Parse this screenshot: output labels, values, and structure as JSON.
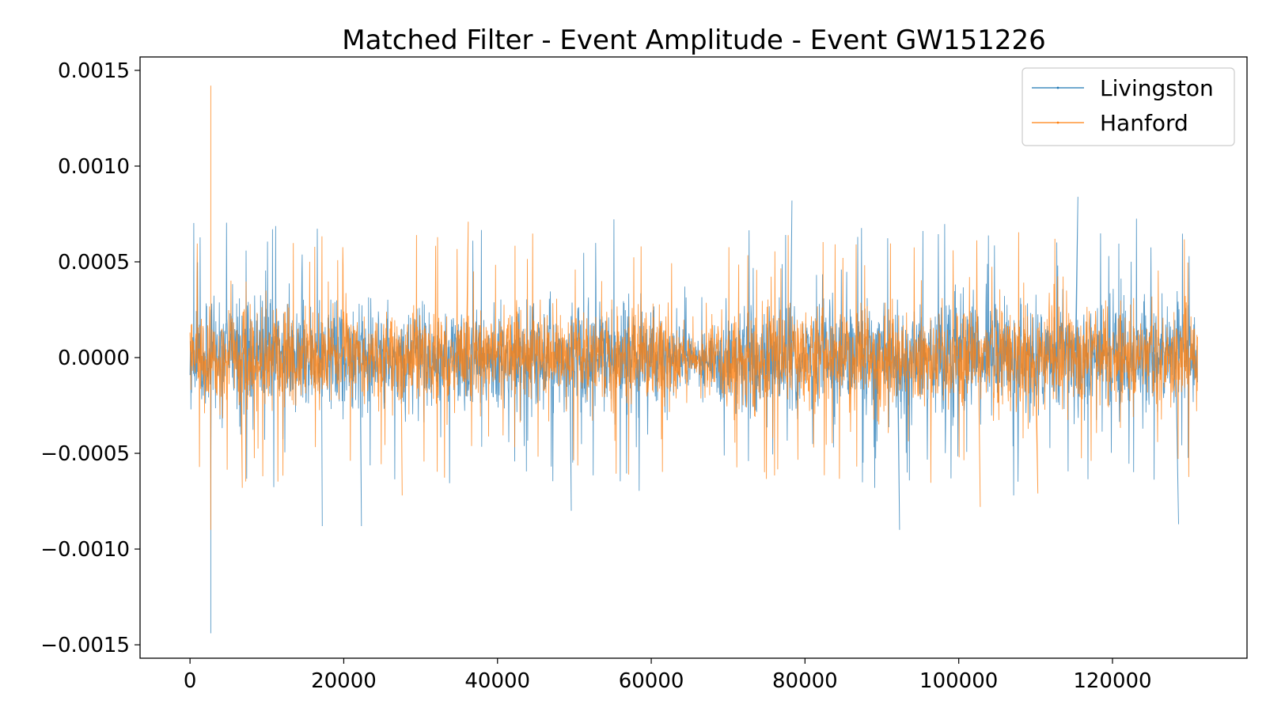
{
  "chart_data": {
    "type": "line",
    "title": "Matched Filter - Event Amplitude - Event GW151226",
    "xlabel": "",
    "ylabel": "",
    "xlim": [
      -6500,
      137500
    ],
    "ylim": [
      -0.00157,
      0.00157
    ],
    "x_ticks": [
      0,
      20000,
      40000,
      60000,
      80000,
      100000,
      120000
    ],
    "x_tick_labels": [
      "0",
      "20000",
      "40000",
      "60000",
      "80000",
      "100000",
      "120000"
    ],
    "y_ticks": [
      -0.0015,
      -0.001,
      -0.0005,
      0.0,
      0.0005,
      0.001,
      0.0015
    ],
    "y_tick_labels": [
      "−0.0015",
      "−0.0010",
      "−0.0005",
      "0.0000",
      "0.0005",
      "0.0010",
      "0.0015"
    ],
    "grid": false,
    "legend": {
      "position": "top-right"
    },
    "x_range": [
      0,
      131071
    ],
    "series": [
      {
        "name": "Livingston",
        "color": "#1f77b4",
        "typical_amplitude": 0.00033,
        "peak_amplitude": 0.00085,
        "dip_center": 66000,
        "dip_amplitude": 0.00012,
        "spikes": [
          {
            "x": 2700,
            "y": -0.00144
          },
          {
            "x": 2700,
            "y": 0.00025
          },
          {
            "x": 17200,
            "y": -0.00088
          },
          {
            "x": 22300,
            "y": -0.00088
          },
          {
            "x": 49600,
            "y": -0.0008
          },
          {
            "x": 78300,
            "y": 0.00082
          },
          {
            "x": 92300,
            "y": -0.0009
          },
          {
            "x": 115500,
            "y": 0.00084
          },
          {
            "x": 128600,
            "y": -0.00087
          }
        ]
      },
      {
        "name": "Hanford",
        "color": "#ff7f0e",
        "typical_amplitude": 0.0003,
        "peak_amplitude": 0.0007,
        "dip_center": 66000,
        "dip_amplitude": 0.0001,
        "spikes": [
          {
            "x": 2700,
            "y": 0.00142
          },
          {
            "x": 2700,
            "y": -0.0009
          },
          {
            "x": 6800,
            "y": -0.00068
          },
          {
            "x": 27600,
            "y": -0.00072
          },
          {
            "x": 36200,
            "y": 0.00071
          },
          {
            "x": 102800,
            "y": -0.00078
          },
          {
            "x": 110300,
            "y": -0.00071
          }
        ]
      }
    ]
  }
}
